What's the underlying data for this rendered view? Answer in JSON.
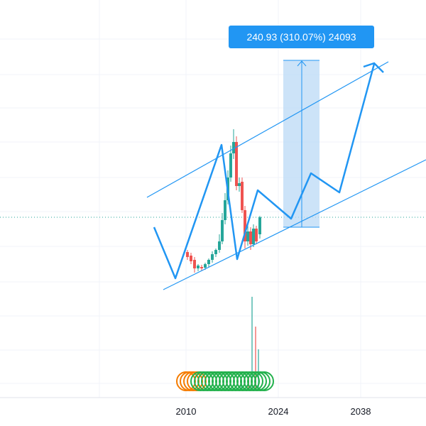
{
  "measure_label": "240.93 (310.07%) 24093",
  "x_axis": {
    "ticks": [
      "2010",
      "2024",
      "2038"
    ]
  }
}
